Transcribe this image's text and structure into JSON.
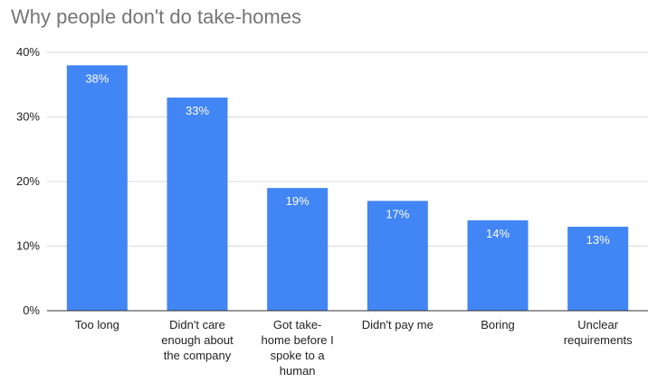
{
  "chart_data": {
    "type": "bar",
    "title": "Why people don't do take-homes",
    "categories": [
      [
        "Too long"
      ],
      [
        "Didn't care",
        "enough about",
        "the company"
      ],
      [
        "Got take-",
        "home before I",
        "spoke to a",
        "human"
      ],
      [
        "Didn't pay me"
      ],
      [
        "Boring"
      ],
      [
        "Unclear",
        "requirements"
      ]
    ],
    "values": [
      38,
      33,
      19,
      17,
      14,
      13
    ],
    "data_labels": [
      "38%",
      "33%",
      "19%",
      "17%",
      "14%",
      "13%"
    ],
    "y_ticks": [
      {
        "value": 0,
        "label": "0%"
      },
      {
        "value": 10,
        "label": "10%"
      },
      {
        "value": 20,
        "label": "20%"
      },
      {
        "value": 30,
        "label": "30%"
      },
      {
        "value": 40,
        "label": "40%"
      }
    ],
    "ylim": [
      0,
      40
    ],
    "grid": true,
    "legend": "none",
    "bar_color": "#4285f4",
    "grid_color": "#d9d9d9",
    "axis_color": "#333333"
  }
}
